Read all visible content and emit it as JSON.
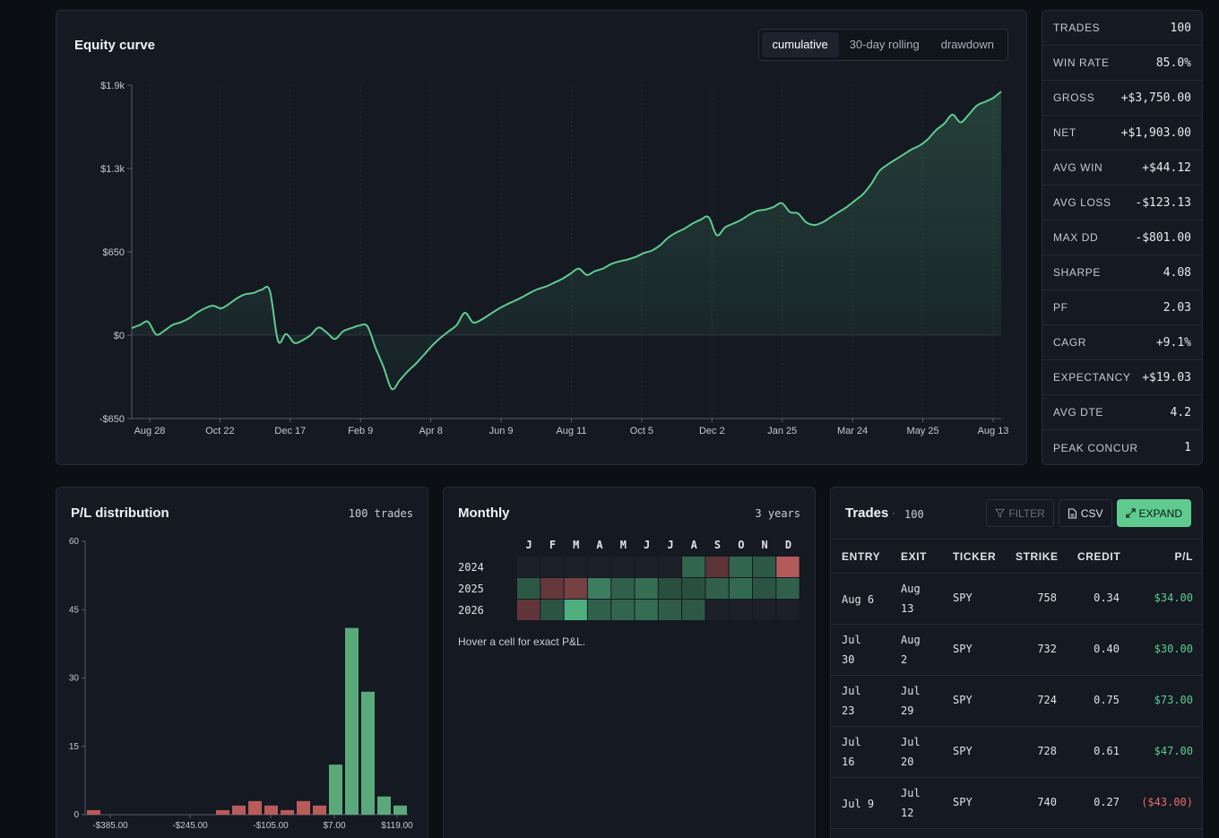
{
  "equity": {
    "title": "Equity curve",
    "tabs": [
      {
        "label": "cumulative",
        "active": true
      },
      {
        "label": "30-day rolling",
        "active": false
      },
      {
        "label": "drawdown",
        "active": false
      }
    ]
  },
  "chart_data": [
    {
      "type": "area",
      "title": "Equity curve",
      "x_ticks": [
        "Aug 28",
        "Oct 22",
        "Dec 17",
        "Feb 9",
        "Apr 8",
        "Jun 9",
        "Aug 11",
        "Oct 5",
        "Dec 2",
        "Jan 25",
        "Mar 24",
        "May 25",
        "Aug 13"
      ],
      "y_ticks": [
        "$1.9k",
        "$1.3k",
        "$650",
        "$0",
        "-$650"
      ],
      "ylim": [
        -650,
        1950
      ],
      "series": [
        {
          "values": [
            55,
            80,
            105,
            5,
            35,
            80,
            100,
            130,
            175,
            210,
            230,
            210,
            245,
            290,
            320,
            330,
            355,
            345,
            -45,
            10,
            -60,
            -40,
            0,
            60,
            20,
            -30,
            30,
            55,
            75,
            70,
            -100,
            -250,
            -420,
            -350,
            -280,
            -220,
            -150,
            -80,
            -20,
            30,
            80,
            175,
            100,
            120,
            160,
            200,
            235,
            265,
            295,
            330,
            360,
            380,
            410,
            440,
            480,
            520,
            470,
            500,
            520,
            555,
            575,
            590,
            610,
            640,
            660,
            700,
            760,
            800,
            830,
            870,
            900,
            920,
            780,
            840,
            870,
            900,
            940,
            970,
            980,
            1000,
            1030,
            960,
            950,
            880,
            860,
            880,
            920,
            960,
            1000,
            1050,
            1100,
            1180,
            1280,
            1330,
            1370,
            1410,
            1450,
            1480,
            1530,
            1600,
            1650,
            1720,
            1660,
            1720,
            1790,
            1820,
            1850,
            1900
          ]
        }
      ]
    },
    {
      "type": "bar",
      "title": "P/L distribution",
      "x_ticks": [
        "-$385.00",
        "-$245.00",
        "-$105.00",
        "$7.00",
        "$119.00"
      ],
      "y_ticks": [
        "0",
        "15",
        "30",
        "45",
        "60"
      ],
      "ylim": [
        0,
        60
      ],
      "values": [
        1,
        0,
        0,
        0,
        0,
        0,
        0,
        0,
        1,
        2,
        3,
        2,
        1,
        3,
        2,
        11,
        41,
        27,
        4,
        2
      ]
    },
    {
      "type": "heatmap",
      "title": "Monthly",
      "columns": [
        "J",
        "F",
        "M",
        "A",
        "M",
        "J",
        "J",
        "A",
        "S",
        "O",
        "N",
        "D"
      ],
      "rows": [
        "2024",
        "2025",
        "2026"
      ],
      "values": [
        [
          null,
          null,
          null,
          null,
          null,
          null,
          null,
          60,
          -40,
          60,
          45,
          -140
        ],
        [
          45,
          -50,
          -70,
          90,
          55,
          70,
          35,
          35,
          55,
          65,
          40,
          55
        ],
        [
          -45,
          40,
          150,
          55,
          60,
          70,
          50,
          45,
          null,
          null,
          null,
          null
        ]
      ]
    }
  ],
  "stats": [
    {
      "label": "TRADES",
      "value": "100",
      "tone": "neutral"
    },
    {
      "label": "WIN RATE",
      "value": "85.0%",
      "tone": "neutral"
    },
    {
      "label": "GROSS",
      "value": "+$3,750.00",
      "tone": "pos"
    },
    {
      "label": "NET",
      "value": "+$1,903.00",
      "tone": "pos"
    },
    {
      "label": "AVG WIN",
      "value": "+$44.12",
      "tone": "pos"
    },
    {
      "label": "AVG LOSS",
      "value": "-$123.13",
      "tone": "neg"
    },
    {
      "label": "MAX DD",
      "value": "-$801.00",
      "tone": "neg"
    },
    {
      "label": "SHARPE",
      "value": "4.08",
      "tone": "neutral"
    },
    {
      "label": "PF",
      "value": "2.03",
      "tone": "neutral"
    },
    {
      "label": "CAGR",
      "value": "+9.1%",
      "tone": "pos"
    },
    {
      "label": "EXPECTANCY",
      "value": "+$19.03",
      "tone": "pos"
    },
    {
      "label": "AVG DTE",
      "value": "4.2",
      "tone": "neutral"
    },
    {
      "label": "PEAK CONCUR",
      "value": "1",
      "tone": "neutral"
    }
  ],
  "distribution": {
    "title": "P/L distribution",
    "meta": "100 trades"
  },
  "monthly": {
    "title": "Monthly",
    "meta": "3 years",
    "note": "Hover a cell for exact P&L."
  },
  "trades": {
    "title": "Trades",
    "dot": "·",
    "count": "100",
    "actions": {
      "filter": "FILTER",
      "csv": "CSV",
      "expand": "EXPAND"
    },
    "columns": [
      "ENTRY",
      "EXIT",
      "TICKER",
      "STRIKE",
      "CREDIT",
      "P/L"
    ],
    "rows": [
      {
        "entry": [
          "Aug 6"
        ],
        "exit": [
          "Aug",
          "13"
        ],
        "ticker": "SPY",
        "strike": "758",
        "credit": "0.34",
        "pl": "$34.00",
        "tone": "pos"
      },
      {
        "entry": [
          "Jul",
          "30"
        ],
        "exit": [
          "Aug",
          "2"
        ],
        "ticker": "SPY",
        "strike": "732",
        "credit": "0.40",
        "pl": "$30.00",
        "tone": "pos"
      },
      {
        "entry": [
          "Jul",
          "23"
        ],
        "exit": [
          "Jul",
          "29"
        ],
        "ticker": "SPY",
        "strike": "724",
        "credit": "0.75",
        "pl": "$73.00",
        "tone": "pos"
      },
      {
        "entry": [
          "Jul",
          "16"
        ],
        "exit": [
          "Jul",
          "20"
        ],
        "ticker": "SPY",
        "strike": "728",
        "credit": "0.61",
        "pl": "$47.00",
        "tone": "pos"
      },
      {
        "entry": [
          "Jul 9"
        ],
        "exit": [
          "Jul",
          "12"
        ],
        "ticker": "SPY",
        "strike": "740",
        "credit": "0.27",
        "pl": "($43.00)",
        "tone": "neg"
      }
    ]
  },
  "colors": {
    "positive": "#5fcb8f",
    "negative": "#ec6a66",
    "panel": "#141922",
    "background": "#0c0f14"
  }
}
